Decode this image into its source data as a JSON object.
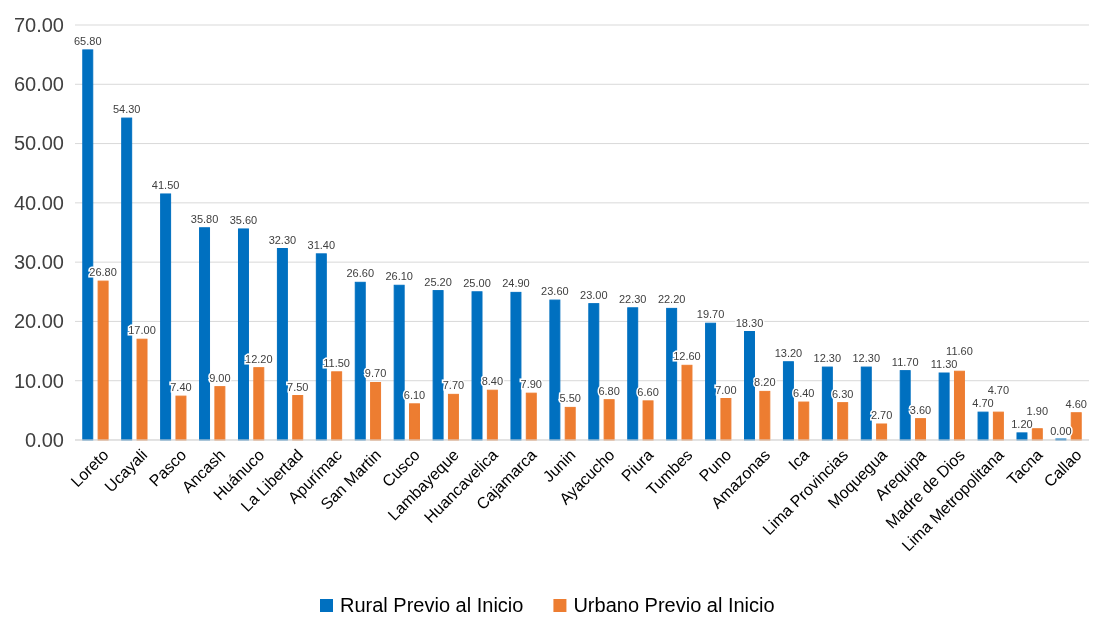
{
  "chart_data": {
    "type": "bar",
    "categories": [
      "Loreto",
      "Ucayali",
      "Pasco",
      "Ancash",
      "Huánuco",
      "La Libertad",
      "Apurímac",
      "San Martin",
      "Cusco",
      "Lambayeque",
      "Huancavelica",
      "Cajamarca",
      "Junin",
      "Ayacucho",
      "Piura",
      "Tumbes",
      "Puno",
      "Amazonas",
      "Ica",
      "Lima Provincias",
      "Moquegua",
      "Arequipa",
      "Madre de Dios",
      "Lima Metropolitana",
      "Tacna",
      "Callao"
    ],
    "series": [
      {
        "name": "Rural Previo al Inicio",
        "color": "#0070c0",
        "values": [
          65.8,
          54.3,
          41.5,
          35.8,
          35.6,
          32.3,
          31.4,
          26.6,
          26.1,
          25.2,
          25.0,
          24.9,
          23.6,
          23.0,
          22.3,
          22.2,
          19.7,
          18.3,
          13.2,
          12.3,
          12.3,
          11.7,
          11.3,
          4.7,
          1.2,
          0.0
        ],
        "value_labels": [
          "65.80",
          "54.30",
          "41.50",
          "35.80",
          "35.60",
          "32.30",
          "31.40",
          "26.60",
          "26.10",
          "25.20",
          "25.00",
          "24.90",
          "23.60",
          "23.00",
          "22.30",
          "22.20",
          "19.70",
          "18.30",
          "13.20",
          "12.30",
          "12.30",
          "11.70",
          "11.30",
          "4.70",
          "1.20",
          "0.00"
        ]
      },
      {
        "name": "Urbano Previo al Inicio",
        "color": "#ed7d31",
        "values": [
          26.8,
          17.0,
          7.4,
          9.0,
          12.2,
          7.5,
          11.5,
          9.7,
          6.1,
          7.7,
          8.4,
          7.9,
          5.5,
          6.8,
          6.6,
          12.6,
          7.0,
          8.2,
          6.4,
          6.3,
          2.7,
          3.6,
          11.6,
          4.7,
          1.9,
          4.6
        ],
        "value_labels": [
          "26.80",
          "17.00",
          "7.40",
          "9.00",
          "12.20",
          "7.50",
          "11.50",
          "9.70",
          "6.10",
          "7.70",
          "8.40",
          "7.90",
          "5.50",
          "6.80",
          "6.60",
          "12.60",
          "7.00",
          "8.20",
          "6.40",
          "6.30",
          "2.70",
          "3.60",
          "11.60",
          "4.70",
          "1.90",
          "4.60"
        ]
      }
    ],
    "ylim": [
      0,
      70
    ],
    "yticks": [
      {
        "value": 0,
        "label": "0.00"
      },
      {
        "value": 10,
        "label": "10.00"
      },
      {
        "value": 20,
        "label": "20.00"
      },
      {
        "value": 30,
        "label": "30.00"
      },
      {
        "value": 40,
        "label": "40.00"
      },
      {
        "value": 50,
        "label": "50.00"
      },
      {
        "value": 60,
        "label": "60.00"
      },
      {
        "value": 70,
        "label": "70.00"
      }
    ],
    "grid": "y",
    "legend": "bottom"
  }
}
